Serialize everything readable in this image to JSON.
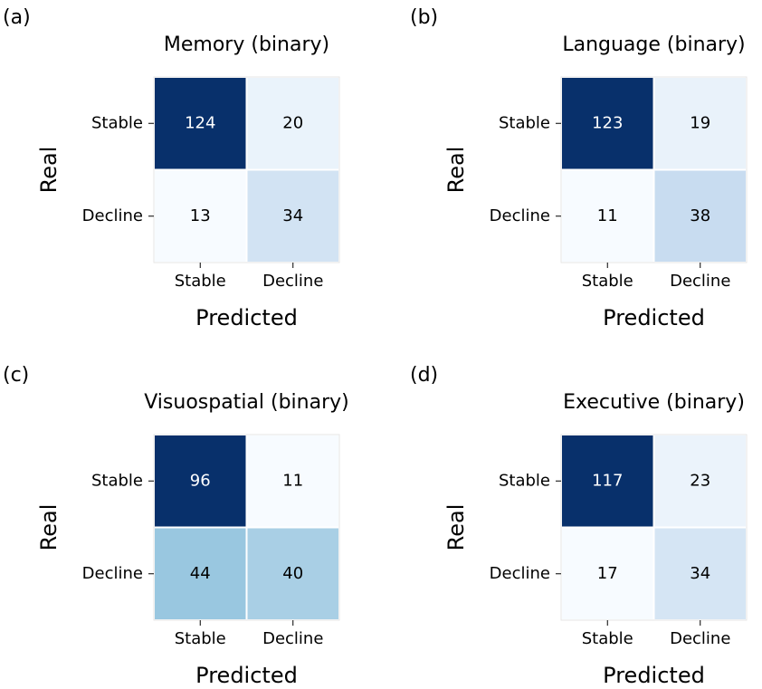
{
  "chart_data": [
    {
      "type": "heatmap",
      "label": "(a)",
      "title": "Memory (binary)",
      "x_label": "Predicted",
      "y_label": "Real",
      "x_categories": [
        "Stable",
        "Decline"
      ],
      "y_categories": [
        "Stable",
        "Decline"
      ],
      "values": [
        [
          124,
          20
        ],
        [
          13,
          34
        ]
      ],
      "colormap": "Blues"
    },
    {
      "type": "heatmap",
      "label": "(b)",
      "title": "Language (binary)",
      "x_label": "Predicted",
      "y_label": "Real",
      "x_categories": [
        "Stable",
        "Decline"
      ],
      "y_categories": [
        "Stable",
        "Decline"
      ],
      "values": [
        [
          123,
          19
        ],
        [
          11,
          38
        ]
      ],
      "colormap": "Blues"
    },
    {
      "type": "heatmap",
      "label": "(c)",
      "title": "Visuospatial (binary)",
      "x_label": "Predicted",
      "y_label": "Real",
      "x_categories": [
        "Stable",
        "Decline"
      ],
      "y_categories": [
        "Stable",
        "Decline"
      ],
      "values": [
        [
          96,
          11
        ],
        [
          44,
          40
        ]
      ],
      "colormap": "Blues"
    },
    {
      "type": "heatmap",
      "label": "(d)",
      "title": "Executive (binary)",
      "x_label": "Predicted",
      "y_label": "Real",
      "x_categories": [
        "Stable",
        "Decline"
      ],
      "y_categories": [
        "Stable",
        "Decline"
      ],
      "values": [
        [
          117,
          23
        ],
        [
          17,
          34
        ]
      ],
      "colormap": "Blues"
    }
  ]
}
